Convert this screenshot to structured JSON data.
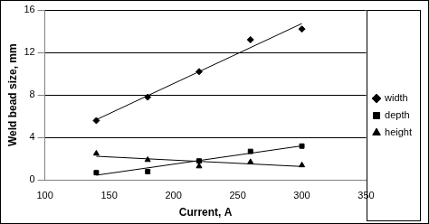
{
  "chart_data": {
    "type": "scatter",
    "x_label": "Current, A",
    "y_label": "Weld bead size, mm",
    "series": [
      {
        "name": "width",
        "color": "#000000",
        "marker": "diamond",
        "line_style": "trend",
        "x": [
          140,
          180,
          220,
          260,
          300
        ],
        "values": [
          5.6,
          7.8,
          10.2,
          13.2,
          14.2
        ]
      },
      {
        "name": "depth",
        "color": "#000000",
        "marker": "square",
        "line_style": "trend",
        "x": [
          140,
          180,
          220,
          260,
          300
        ],
        "values": [
          0.7,
          0.8,
          1.8,
          2.7,
          3.2
        ]
      },
      {
        "name": "height",
        "color": "#000000",
        "marker": "triangle",
        "line_style": "trend",
        "x": [
          140,
          180,
          220,
          260,
          300
        ],
        "values": [
          2.5,
          1.9,
          1.3,
          1.7,
          1.4
        ]
      }
    ],
    "xlim": [
      100,
      350
    ],
    "xticks": [
      100,
      150,
      200,
      250,
      300,
      350
    ],
    "ylim": [
      0,
      16
    ],
    "yticks": [
      0,
      4,
      8,
      12,
      16
    ],
    "grid": true,
    "legend": "right"
  }
}
